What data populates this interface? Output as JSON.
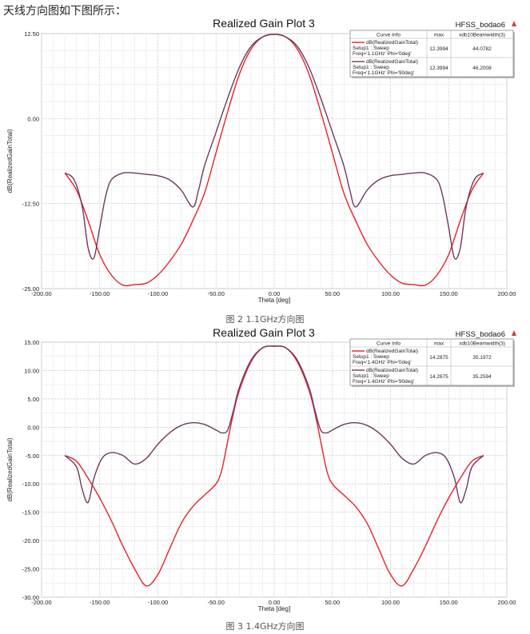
{
  "intro_text": "天线方向图如下图所示：",
  "chart_data": [
    {
      "type": "line",
      "title": "Realized Gain Plot 3",
      "app_label": "HFSS_bodao6",
      "xlabel": "Theta [deg]",
      "ylabel": "dB(RealizedGainTotal)",
      "xlim": [
        -200,
        200
      ],
      "ylim": [
        -25,
        12.5
      ],
      "xticks": [
        -200,
        -150,
        -100,
        -50,
        0,
        50,
        100,
        150,
        200
      ],
      "xtick_labels": [
        "-200.00",
        "-150.00",
        "-100.00",
        "-50.00",
        "0.00",
        "50.00",
        "100.00",
        "150.00",
        "200.00"
      ],
      "yticks": [
        12.5,
        0,
        -12.5,
        -25
      ],
      "ytick_labels": [
        "12.50",
        "0.00",
        "-12.50",
        "-25.00"
      ],
      "grid": true,
      "legend_position": "top-right",
      "legend_headers": [
        "Curve Info",
        "max",
        "xdb10Beamwidth(3)"
      ],
      "caption": "图 2 1.1GHz方向图",
      "series": [
        {
          "name_line1": "dB(RealizedGainTotal)",
          "name_line2": "Setup1 : Sweep",
          "name_line3": "Freq='1.1GHz' Phi='0deg'",
          "max": "12.3994",
          "beamwidth": "44.0782",
          "color": "#e8202a",
          "x": [
            -180,
            -170,
            -160,
            -150,
            -140,
            -130,
            -120,
            -110,
            -100,
            -90,
            -80,
            -70,
            -60,
            -50,
            -40,
            -30,
            -20,
            -10,
            0,
            10,
            20,
            30,
            40,
            50,
            60,
            70,
            80,
            90,
            100,
            110,
            120,
            130,
            140,
            150,
            160,
            170,
            180
          ],
          "y": [
            -8,
            -10.5,
            -15,
            -20,
            -23,
            -24.5,
            -24.4,
            -24.2,
            -23,
            -21,
            -18.5,
            -15,
            -11,
            -5,
            1,
            6.5,
            10.2,
            12,
            12.4,
            12,
            10.2,
            6.5,
            1,
            -5,
            -11,
            -15,
            -18.5,
            -21,
            -23,
            -24.2,
            -24.4,
            -24.5,
            -23,
            -20,
            -15,
            -10.5,
            -8
          ]
        },
        {
          "name_line1": "dB(RealizedGainTotal)",
          "name_line2": "Setup1 : Sweep",
          "name_line3": "Freq='1.1GHz' Phi='90deg'",
          "max": "12.3994",
          "beamwidth": "46.2008",
          "color": "#6e3a5e",
          "x": [
            -180,
            -172,
            -165,
            -160,
            -155,
            -150,
            -145,
            -140,
            -130,
            -120,
            -110,
            -100,
            -90,
            -80,
            -70,
            -65,
            -60,
            -50,
            -40,
            -30,
            -20,
            -10,
            0,
            10,
            20,
            30,
            40,
            50,
            60,
            65,
            70,
            80,
            90,
            100,
            110,
            120,
            130,
            140,
            145,
            150,
            155,
            160,
            165,
            172,
            180
          ],
          "y": [
            -8,
            -9,
            -13,
            -19,
            -20.5,
            -16,
            -11.5,
            -9,
            -8,
            -8,
            -8.2,
            -8.4,
            -9,
            -10.5,
            -13,
            -10.5,
            -7,
            -2,
            3,
            7.5,
            10.6,
            12,
            12.4,
            12,
            10.6,
            7.5,
            3,
            -2,
            -7,
            -10.5,
            -13,
            -10.5,
            -9,
            -8.4,
            -8.2,
            -8,
            -8,
            -9,
            -11.5,
            -16,
            -20.5,
            -19,
            -13,
            -9,
            -8
          ]
        }
      ]
    },
    {
      "type": "line",
      "title": "Realized Gain Plot 3",
      "app_label": "HFSS_bodao6",
      "xlabel": "Theta [deg]",
      "ylabel": "dB(RealizedGainTotal)",
      "xlim": [
        -200,
        200
      ],
      "ylim": [
        -30,
        15
      ],
      "xticks": [
        -200,
        -150,
        -100,
        -50,
        0,
        50,
        100,
        150,
        200
      ],
      "xtick_labels": [
        "-200.00",
        "-150.00",
        "-100.00",
        "-50.00",
        "0.00",
        "50.00",
        "100.00",
        "150.00",
        "200.00"
      ],
      "yticks": [
        15,
        10,
        5,
        0,
        -5,
        -10,
        -15,
        -20,
        -25,
        -30
      ],
      "ytick_labels": [
        "15.00",
        "10.00",
        "5.00",
        "0.00",
        "-5.00",
        "-10.00",
        "-15.00",
        "-20.00",
        "-25.00",
        "-30.00"
      ],
      "grid": true,
      "legend_position": "top-right",
      "legend_headers": [
        "Curve Info",
        "max",
        "xdb10Beamwidth(3)"
      ],
      "caption": "图 3 1.4GHz方向图",
      "series": [
        {
          "name_line1": "dB(RealizedGainTotal)",
          "name_line2": "Setup1 : Sweep",
          "name_line3": "Freq='1.4GHz' Phi='0deg'",
          "max": "14.2875",
          "beamwidth": "35.1972",
          "color": "#e8202a",
          "x": [
            -180,
            -170,
            -160,
            -150,
            -140,
            -130,
            -120,
            -110,
            -100,
            -90,
            -80,
            -70,
            -60,
            -50,
            -45,
            -40,
            -35,
            -30,
            -20,
            -10,
            0,
            10,
            20,
            30,
            35,
            40,
            45,
            50,
            60,
            70,
            80,
            90,
            100,
            110,
            120,
            130,
            140,
            150,
            160,
            170,
            180
          ],
          "y": [
            -5,
            -6,
            -9,
            -12.5,
            -16.5,
            -21,
            -25,
            -28,
            -26,
            -21.5,
            -17,
            -14,
            -12,
            -10,
            -7.5,
            -2.5,
            2.5,
            6.5,
            11.5,
            14,
            14.3,
            14,
            11.5,
            6.5,
            2.5,
            -2.5,
            -7.5,
            -10,
            -12,
            -14,
            -17,
            -21.5,
            -26,
            -28,
            -25,
            -21,
            -16.5,
            -12.5,
            -9,
            -6,
            -5
          ]
        },
        {
          "name_line1": "dB(RealizedGainTotal)",
          "name_line2": "Setup1 : Sweep",
          "name_line3": "Freq='1.4GHz' Phi='90deg'",
          "max": "14.2875",
          "beamwidth": "35.2594",
          "color": "#6e3a5e",
          "x": [
            -180,
            -170,
            -165,
            -160,
            -155,
            -148,
            -140,
            -130,
            -120,
            -110,
            -100,
            -90,
            -80,
            -70,
            -60,
            -50,
            -45,
            -40,
            -35,
            -30,
            -20,
            -10,
            0,
            10,
            20,
            30,
            35,
            40,
            45,
            50,
            60,
            70,
            80,
            90,
            100,
            110,
            120,
            130,
            140,
            148,
            155,
            160,
            165,
            170,
            180
          ],
          "y": [
            -5,
            -7,
            -11,
            -13.3,
            -9,
            -5.5,
            -4.5,
            -5,
            -6.5,
            -5.5,
            -3,
            -1,
            0.3,
            0.8,
            0.5,
            -0.5,
            -1,
            -0.5,
            3,
            7,
            11.8,
            14,
            14.3,
            14,
            11.8,
            7,
            3,
            -0.5,
            -1,
            -0.5,
            0.5,
            0.8,
            0.3,
            -1,
            -3,
            -5.5,
            -6.5,
            -5,
            -4.5,
            -5.5,
            -9,
            -13.3,
            -11,
            -7,
            -5
          ]
        }
      ]
    }
  ]
}
